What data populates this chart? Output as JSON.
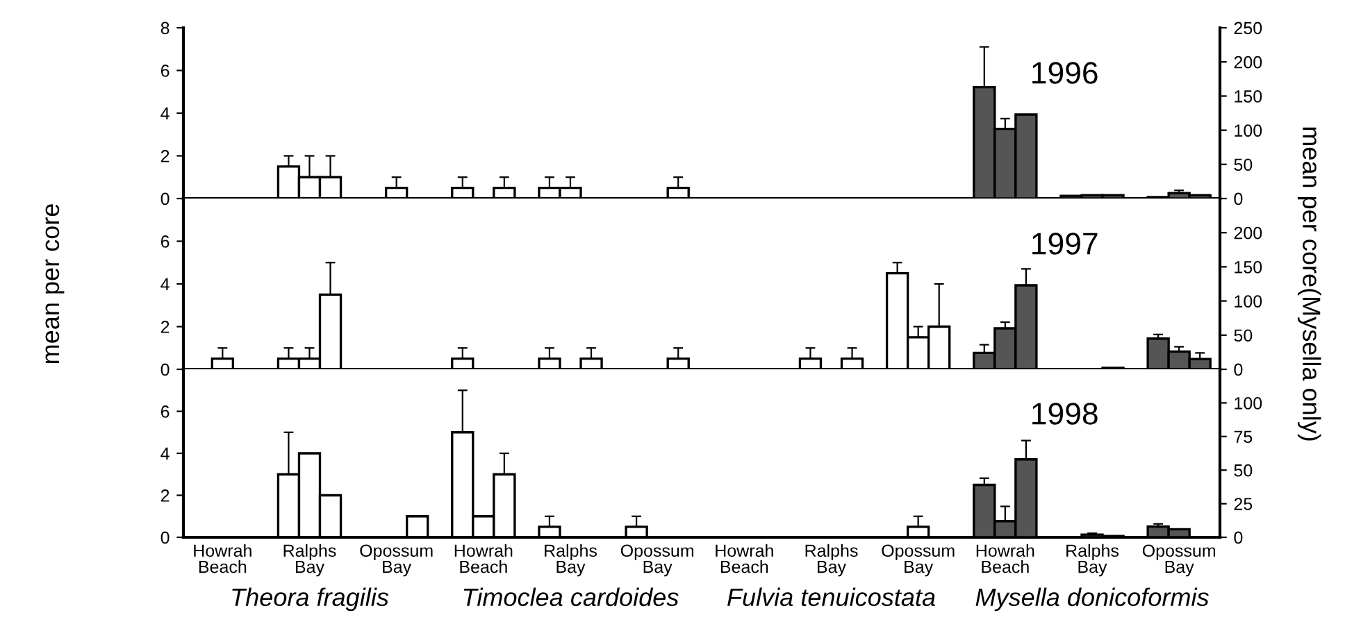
{
  "chart_data": [
    {
      "type": "bar",
      "title": "1996",
      "tick_labels": "y",
      "categories": [
        null,
        null,
        null,
        null,
        null,
        null,
        null,
        null,
        null,
        null,
        null,
        null
      ],
      "ylim": [
        0,
        8
      ],
      "yticks": [
        0,
        2,
        4,
        6,
        8
      ],
      "y2lim": [
        0,
        250
      ],
      "y2ticks": [
        0,
        50,
        100,
        150,
        200,
        250
      ],
      "series": [
        {
          "color": "#ffffff",
          "values": [
            null,
            1.5,
            null,
            0.5,
            0.5,
            null,
            null,
            null,
            null,
            null,
            null,
            null
          ],
          "errors": [
            null,
            [
              1.5,
              2
            ],
            null,
            [
              0.5,
              1
            ],
            [
              0.5,
              1
            ],
            null,
            null,
            null,
            null,
            null,
            null,
            null
          ]
        },
        {
          "color": "#ffffff",
          "values": [
            null,
            1,
            0.5,
            null,
            0.5,
            null,
            null,
            null,
            null,
            null,
            null,
            null
          ],
          "errors": [
            null,
            [
              1,
              2
            ],
            [
              0.5,
              1
            ],
            null,
            [
              0.5,
              1
            ],
            null,
            null,
            null,
            null,
            null,
            null,
            null
          ]
        },
        {
          "color": "#ffffff",
          "values": [
            null,
            1,
            null,
            0.5,
            null,
            0.5,
            null,
            null,
            null,
            null,
            null,
            null
          ],
          "errors": [
            null,
            [
              1,
              2
            ],
            null,
            [
              0.5,
              1
            ],
            null,
            [
              0.5,
              1
            ],
            null,
            null,
            null,
            null,
            null,
            null
          ]
        },
        {
          "color": "#555555",
          "axis": "y2",
          "values": [
            null,
            null,
            null,
            null,
            null,
            null,
            null,
            null,
            null,
            163,
            4,
            2
          ],
          "errors": [
            null,
            null,
            null,
            null,
            null,
            null,
            null,
            null,
            null,
            [
              163,
              222
            ],
            null,
            null
          ]
        },
        {
          "color": "#555555",
          "axis": "y2",
          "values": [
            null,
            null,
            null,
            null,
            null,
            null,
            null,
            null,
            null,
            102,
            5,
            8
          ],
          "errors": [
            null,
            null,
            null,
            null,
            null,
            null,
            null,
            null,
            null,
            [
              102,
              117
            ],
            null,
            [
              8,
              12
            ]
          ]
        },
        {
          "color": "#555555",
          "axis": "y2",
          "values": [
            null,
            null,
            null,
            null,
            null,
            null,
            null,
            null,
            null,
            123,
            5,
            5
          ],
          "errors": [
            null,
            null,
            null,
            null,
            null,
            null,
            null,
            null,
            null,
            null,
            null,
            null
          ]
        }
      ]
    },
    {
      "type": "bar",
      "title": "1997",
      "tick_labels": "y",
      "ylabel": "mean per core",
      "y2label": "mean per core(Mysella only)",
      "categories": [
        null,
        null,
        null,
        null,
        null,
        null,
        null,
        null,
        null,
        null,
        null,
        null
      ],
      "ylim": [
        0,
        8
      ],
      "yticks": [
        0,
        2,
        4,
        6
      ],
      "y2lim": [
        0,
        250
      ],
      "y2ticks": [
        0,
        50,
        100,
        150,
        200
      ],
      "series": [
        {
          "color": "#ffffff",
          "values": [
            null,
            0.5,
            null,
            0.5,
            0.5,
            null,
            null,
            0.5,
            4.5,
            null,
            null,
            null
          ],
          "errors": [
            null,
            [
              0.5,
              1
            ],
            null,
            [
              0.5,
              1
            ],
            [
              0.5,
              1
            ],
            null,
            null,
            [
              0.5,
              1
            ],
            [
              4.5,
              5
            ],
            null,
            null,
            null
          ]
        },
        {
          "color": "#ffffff",
          "values": [
            0.5,
            0.5,
            null,
            null,
            null,
            null,
            null,
            null,
            1.5,
            null,
            null,
            null
          ],
          "errors": [
            [
              0.5,
              1
            ],
            [
              0.5,
              1
            ],
            null,
            null,
            null,
            null,
            null,
            null,
            [
              1.5,
              2
            ],
            null,
            null,
            null
          ]
        },
        {
          "color": "#ffffff",
          "values": [
            null,
            3.5,
            null,
            null,
            0.5,
            0.5,
            null,
            0.5,
            2,
            null,
            null,
            null
          ],
          "errors": [
            null,
            [
              3.5,
              5
            ],
            null,
            null,
            [
              0.5,
              1
            ],
            [
              0.5,
              1
            ],
            null,
            [
              0.5,
              1
            ],
            [
              2,
              4
            ],
            null,
            null,
            null
          ]
        },
        {
          "color": "#555555",
          "axis": "y2",
          "values": [
            null,
            null,
            null,
            null,
            null,
            null,
            null,
            null,
            null,
            24,
            null,
            45
          ],
          "errors": [
            null,
            null,
            null,
            null,
            null,
            null,
            null,
            null,
            null,
            [
              24,
              36
            ],
            null,
            [
              45,
              51
            ]
          ]
        },
        {
          "color": "#555555",
          "axis": "y2",
          "values": [
            null,
            null,
            null,
            null,
            null,
            null,
            null,
            null,
            null,
            60,
            null,
            26
          ],
          "errors": [
            null,
            null,
            null,
            null,
            null,
            null,
            null,
            null,
            null,
            [
              60,
              69
            ],
            null,
            [
              26,
              33
            ]
          ]
        },
        {
          "color": "#555555",
          "axis": "y2",
          "values": [
            null,
            null,
            null,
            null,
            null,
            null,
            null,
            null,
            null,
            123,
            2,
            15
          ],
          "errors": [
            null,
            null,
            null,
            null,
            null,
            null,
            null,
            null,
            null,
            [
              123,
              147
            ],
            null,
            [
              15,
              24
            ]
          ]
        }
      ]
    },
    {
      "type": "bar",
      "title": "1998",
      "categories": [
        "Howrah\nBeach",
        "Ralphs\nBay",
        "Opossum\nBay",
        "Howrah\nBeach",
        "Ralphs\nBay",
        "Opossum\nBay",
        "Howrah\nBeach",
        "Ralphs\nBay",
        "Opossum\nBay",
        "Howrah\nBeach",
        "Ralphs\nBay",
        "Opossum\nBay"
      ],
      "ylim": [
        0,
        8
      ],
      "yticks": [
        0,
        2,
        4,
        6
      ],
      "y2lim": [
        0,
        125
      ],
      "y2ticks": [
        0,
        25,
        50,
        75,
        100
      ],
      "annotations": [
        "Theora fragilis",
        "Timoclea cardoides",
        "Fulvia tenuicostata",
        "Mysella donicoformis"
      ],
      "series": [
        {
          "color": "#ffffff",
          "values": [
            null,
            3,
            null,
            5,
            0.5,
            0.5,
            null,
            null,
            null,
            null,
            null,
            null
          ],
          "errors": [
            null,
            [
              3,
              5
            ],
            null,
            [
              5,
              7
            ],
            [
              0.5,
              1
            ],
            [
              0.5,
              1
            ],
            null,
            null,
            null,
            null,
            null,
            null
          ]
        },
        {
          "color": "#ffffff",
          "values": [
            null,
            4,
            null,
            1,
            null,
            null,
            null,
            null,
            0.5,
            null,
            null,
            null
          ],
          "errors": [
            null,
            null,
            null,
            null,
            null,
            null,
            null,
            null,
            [
              0.5,
              1
            ],
            null,
            null,
            null
          ]
        },
        {
          "color": "#ffffff",
          "values": [
            null,
            2,
            1,
            3,
            null,
            null,
            null,
            null,
            null,
            null,
            null,
            null
          ],
          "errors": [
            null,
            null,
            null,
            [
              3,
              4
            ],
            null,
            null,
            null,
            null,
            null,
            null,
            null,
            null
          ]
        },
        {
          "color": "#555555",
          "axis": "y2",
          "values": [
            null,
            null,
            null,
            null,
            null,
            null,
            null,
            null,
            null,
            39,
            null,
            8
          ],
          "errors": [
            null,
            null,
            null,
            null,
            null,
            null,
            null,
            null,
            null,
            [
              39,
              44
            ],
            null,
            [
              8,
              10
            ]
          ]
        },
        {
          "color": "#555555",
          "axis": "y2",
          "values": [
            null,
            null,
            null,
            null,
            null,
            null,
            null,
            null,
            null,
            12,
            2,
            6
          ],
          "errors": [
            null,
            null,
            null,
            null,
            null,
            null,
            null,
            null,
            null,
            [
              12,
              23
            ],
            [
              2,
              3
            ],
            null
          ]
        },
        {
          "color": "#555555",
          "axis": "y2",
          "values": [
            null,
            null,
            null,
            null,
            null,
            null,
            null,
            null,
            null,
            58,
            1,
            null
          ],
          "errors": [
            null,
            null,
            null,
            null,
            null,
            null,
            null,
            null,
            null,
            [
              58,
              72
            ],
            null,
            null
          ]
        }
      ]
    }
  ]
}
